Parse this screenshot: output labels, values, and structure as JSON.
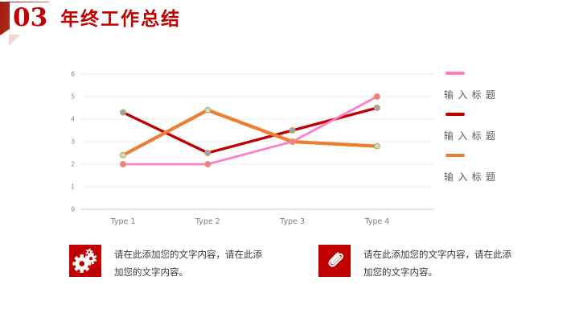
{
  "slide": {
    "section_number": "03",
    "title": "年终工作总结",
    "accent_color": "#c00000"
  },
  "chart_data": {
    "type": "line",
    "categories": [
      "Type 1",
      "Type 2",
      "Type 3",
      "Type 4"
    ],
    "series": [
      {
        "name": "输 入 标 题",
        "values": [
          2,
          2,
          3,
          5
        ],
        "color": "#ff7ec8",
        "marker_fill": "#f272b4",
        "line_width": 2.8
      },
      {
        "name": "输 入 标 题",
        "values": [
          4.3,
          2.5,
          3.5,
          4.5
        ],
        "color": "#c00000",
        "marker_fill": "#7fa8d9",
        "line_width": 3.4
      },
      {
        "name": "输 入 标 题",
        "values": [
          2.4,
          4.4,
          3,
          2.8
        ],
        "color": "#ed7d31",
        "marker_fill": "#aee8e0",
        "line_width": 4.2
      }
    ],
    "ylim": [
      0,
      6
    ],
    "ytick_step": 1,
    "grid": true,
    "legend_position": "right",
    "marker_stroke": "#dda23e",
    "axis_label_color": "#808080",
    "gridline_color": "#ebebeb",
    "baseline_color": "#c8c8c8"
  },
  "callouts": [
    {
      "icon": "gears-icon",
      "text": "请在此添加您的文字内容，请在此添加您的文字内容。"
    },
    {
      "icon": "paperclip-icon",
      "text": "请在此添加您的文字内容，请在此添加您的文字内容。"
    }
  ]
}
